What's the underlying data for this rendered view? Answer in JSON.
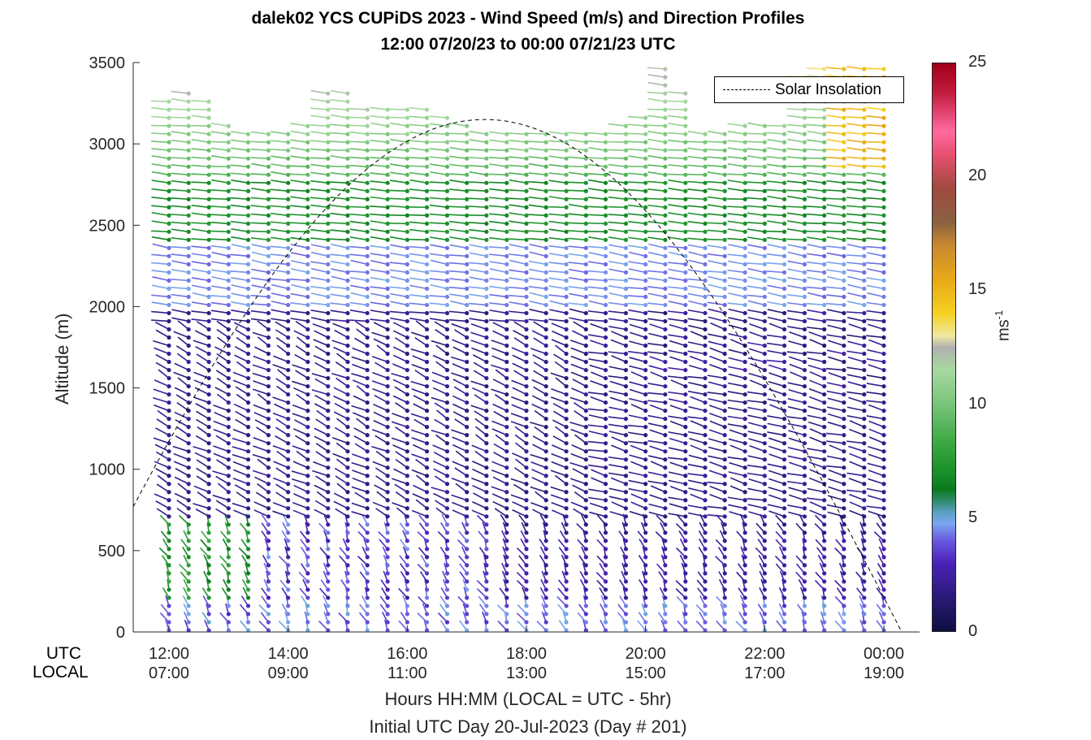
{
  "title": {
    "line1": "dalek02 YCS CUPiDS 2023 - Wind Speed (m/s) and Direction Profiles",
    "line2": "12:00 07/20/23 to 00:00 07/21/23  UTC"
  },
  "axis_side_labels": {
    "utc": "UTC",
    "local": "LOCAL"
  },
  "xlabel_line1": "Hours HH:MM  (LOCAL = UTC - 5hr)",
  "xlabel_line2": "Initial UTC Day 20-Jul-2023 (Day # 201)",
  "ylabel": "Altitude (m)",
  "legend": {
    "label": "Solar Insolation"
  },
  "colorbar": {
    "label": "ms-1",
    "ticks": [
      "0",
      "5",
      "10",
      "15",
      "20",
      "25"
    ],
    "range": [
      0,
      25
    ]
  },
  "chart_data": {
    "type": "scatter",
    "title": "dalek02 YCS CUPiDS 2023 - Wind Speed (m/s) and Direction Profiles",
    "subtitle": "12:00 07/20/23 to 00:00 07/21/23  UTC",
    "xlabel": "Hours HH:MM  (LOCAL = UTC - 5hr)",
    "ylabel": "Altitude (m)",
    "x_range_hours_utc": [
      11.4,
      24.6
    ],
    "ylim": [
      0,
      3500
    ],
    "x_ticks_utc": [
      "12:00",
      "14:00",
      "16:00",
      "18:00",
      "20:00",
      "22:00",
      "00:00"
    ],
    "x_ticks_local": [
      "07:00",
      "09:00",
      "11:00",
      "13:00",
      "15:00",
      "17:00",
      "19:00"
    ],
    "y_ticks": [
      0,
      500,
      1000,
      1500,
      2000,
      2500,
      3000,
      3500
    ],
    "grid": false,
    "legend_position": "top-right",
    "profile_times_utc_hours": [
      12.0,
      12.33,
      12.67,
      13.0,
      13.33,
      13.67,
      14.0,
      14.33,
      14.67,
      15.0,
      15.33,
      15.67,
      16.0,
      16.33,
      16.67,
      17.0,
      17.33,
      17.67,
      18.0,
      18.33,
      18.67,
      19.0,
      19.33,
      19.67,
      20.0,
      20.33,
      20.67,
      21.0,
      21.33,
      21.67,
      22.0,
      22.33,
      22.67,
      23.0,
      23.33,
      23.67,
      24.0
    ],
    "profile_top_altitudes_m": [
      3280,
      3310,
      3270,
      3120,
      3080,
      3080,
      3100,
      3110,
      3340,
      3310,
      3240,
      3220,
      3230,
      3220,
      3180,
      3110,
      3090,
      3080,
      3100,
      3090,
      3080,
      3090,
      3100,
      3120,
      3170,
      3480,
      3350,
      3080,
      3080,
      3120,
      3120,
      3150,
      3410,
      3470,
      3470,
      3470,
      3470
    ],
    "speed_color_scale": {
      "min": 0,
      "max": 25,
      "units": "m/s"
    },
    "speed_layers": [
      {
        "altitude_range_m": [
          0,
          600
        ],
        "speed_mps": 2.5,
        "description": "purple"
      },
      {
        "altitude_range_m": [
          600,
          2000
        ],
        "speed_mps": 2.0,
        "description": "dark purple"
      },
      {
        "altitude_range_m": [
          2000,
          2400
        ],
        "speed_mps": 4.5,
        "description": "light blue"
      },
      {
        "altitude_range_m": [
          2400,
          2800
        ],
        "speed_mps": 7.0,
        "description": "green"
      },
      {
        "altitude_range_m": [
          2800,
          3300
        ],
        "speed_mps": 10.0,
        "description": "light green"
      }
    ],
    "solar_insolation": {
      "name": "Solar Insolation",
      "style": "dashed",
      "peak_time_utc_hours": 17.3,
      "peak_altitude_equiv_m": 3150,
      "zero_time_utc_hours": 24.3
    }
  }
}
